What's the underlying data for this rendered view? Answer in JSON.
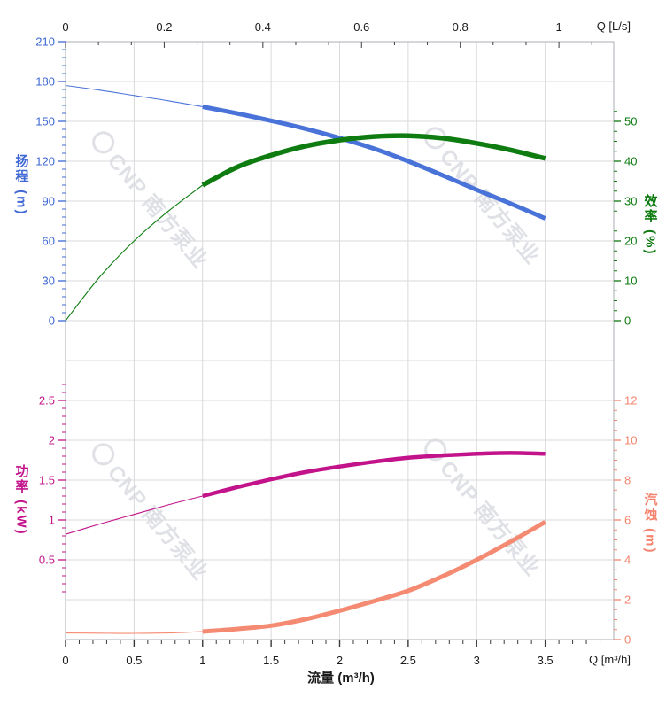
{
  "watermark": {
    "text": "CNP 南方泵业"
  },
  "labels": {
    "head_axis": "扬程 (m)",
    "eff_axis": "效率 (%)",
    "power_axis": "功率 (kW)",
    "npsh_axis": "汽蚀 (m)",
    "flow_axis": "流量 (m³/h)",
    "q_ls": "Q [L/s]",
    "q_m3h": "Q [m³/h]"
  },
  "chart_data": [
    {
      "type": "line",
      "title": "Pump head and efficiency vs flow",
      "x": {
        "axis": "top",
        "label": "Q [L/s]",
        "ticks": [
          0,
          0.2,
          0.4,
          0.6,
          0.8,
          1
        ],
        "range_m3h": [
          0,
          4
        ],
        "m3h_per_ls": 3.6
      },
      "axes": {
        "left": {
          "label": "扬程",
          "unit": "(m)",
          "color": "#3f68d4",
          "ticks": [
            0,
            30,
            60,
            90,
            120,
            150,
            180,
            210
          ],
          "minor_step": 6,
          "range": [
            0,
            210
          ]
        },
        "right": {
          "label": "效率",
          "unit": "(%)",
          "color": "#0d7a10",
          "ticks": [
            0,
            10,
            20,
            30,
            40,
            50
          ],
          "minor_step": 2.5,
          "range": [
            0,
            70
          ]
        }
      },
      "series": [
        {
          "name": "扬程 head",
          "axis": "left",
          "color": "#4a73d9",
          "thick": 5,
          "thick_from": 1,
          "points": [
            [
              0,
              177
            ],
            [
              0.25,
              173.5
            ],
            [
              0.5,
              169.5
            ],
            [
              0.75,
              165.5
            ],
            [
              1,
              161
            ],
            [
              1.25,
              156
            ],
            [
              1.5,
              150.5
            ],
            [
              1.75,
              144.5
            ],
            [
              2,
              137.5
            ],
            [
              2.25,
              129.5
            ],
            [
              2.5,
              120
            ],
            [
              2.75,
              109.5
            ],
            [
              3,
              98.5
            ],
            [
              3.25,
              88
            ],
            [
              3.5,
              77
            ]
          ]
        },
        {
          "name": "效率 efficiency",
          "axis": "right",
          "color": "#0e7c10",
          "thick": 5.5,
          "thick_from": 1,
          "points": [
            [
              0,
              0
            ],
            [
              0.25,
              11
            ],
            [
              0.5,
              20
            ],
            [
              0.75,
              27.5
            ],
            [
              1,
              34
            ],
            [
              1.25,
              38.5
            ],
            [
              1.5,
              41.5
            ],
            [
              1.75,
              43.8
            ],
            [
              2,
              45.3
            ],
            [
              2.25,
              46.2
            ],
            [
              2.5,
              46.4
            ],
            [
              2.75,
              45.8
            ],
            [
              3,
              44.5
            ],
            [
              3.25,
              42.8
            ],
            [
              3.5,
              40.7
            ]
          ]
        }
      ]
    },
    {
      "type": "line",
      "title": "Pump power and NPSH vs flow",
      "x": {
        "axis": "bottom",
        "label": "流量 (m³/h)",
        "corner_label": "Q [m³/h]",
        "ticks": [
          0,
          0.5,
          1,
          1.5,
          2,
          2.5,
          3,
          3.5
        ],
        "minor_step": 0.1,
        "range_m3h": [
          0,
          4
        ]
      },
      "axes": {
        "left": {
          "label": "功率",
          "unit": "(kW)",
          "color": "#c2138a",
          "ticks": [
            0.5,
            1,
            1.5,
            2,
            2.5
          ],
          "minor_step": 0.1,
          "range": [
            -0.5,
            2.5
          ]
        },
        "right": {
          "label": "汽蚀",
          "unit": "(m)",
          "color": "#f5846f",
          "ticks": [
            0,
            2,
            4,
            6,
            8,
            10,
            12
          ],
          "minor_step": 0.5,
          "range": [
            0,
            12
          ]
        }
      },
      "series": [
        {
          "name": "功率 power",
          "axis": "left",
          "color": "#c2138a",
          "thick": 4.5,
          "thick_from": 1,
          "points": [
            [
              0,
              0.82
            ],
            [
              0.25,
              0.95
            ],
            [
              0.5,
              1.07
            ],
            [
              0.75,
              1.19
            ],
            [
              1,
              1.3
            ],
            [
              1.25,
              1.41
            ],
            [
              1.5,
              1.51
            ],
            [
              1.75,
              1.6
            ],
            [
              2,
              1.67
            ],
            [
              2.25,
              1.73
            ],
            [
              2.5,
              1.78
            ],
            [
              2.75,
              1.81
            ],
            [
              3,
              1.83
            ],
            [
              3.25,
              1.84
            ],
            [
              3.5,
              1.83
            ]
          ]
        },
        {
          "name": "汽蚀 NPSH",
          "axis": "right",
          "color": "#f58a72",
          "thick": 5,
          "thick_from": 1,
          "points": [
            [
              0,
              0.33
            ],
            [
              0.25,
              0.32
            ],
            [
              0.5,
              0.31
            ],
            [
              0.75,
              0.33
            ],
            [
              1,
              0.4
            ],
            [
              1.25,
              0.53
            ],
            [
              1.5,
              0.7
            ],
            [
              1.75,
              1.02
            ],
            [
              2,
              1.45
            ],
            [
              2.25,
              1.93
            ],
            [
              2.5,
              2.45
            ],
            [
              2.75,
              3.17
            ],
            [
              3,
              4.0
            ],
            [
              3.25,
              4.92
            ],
            [
              3.5,
              5.9
            ]
          ]
        }
      ]
    }
  ]
}
